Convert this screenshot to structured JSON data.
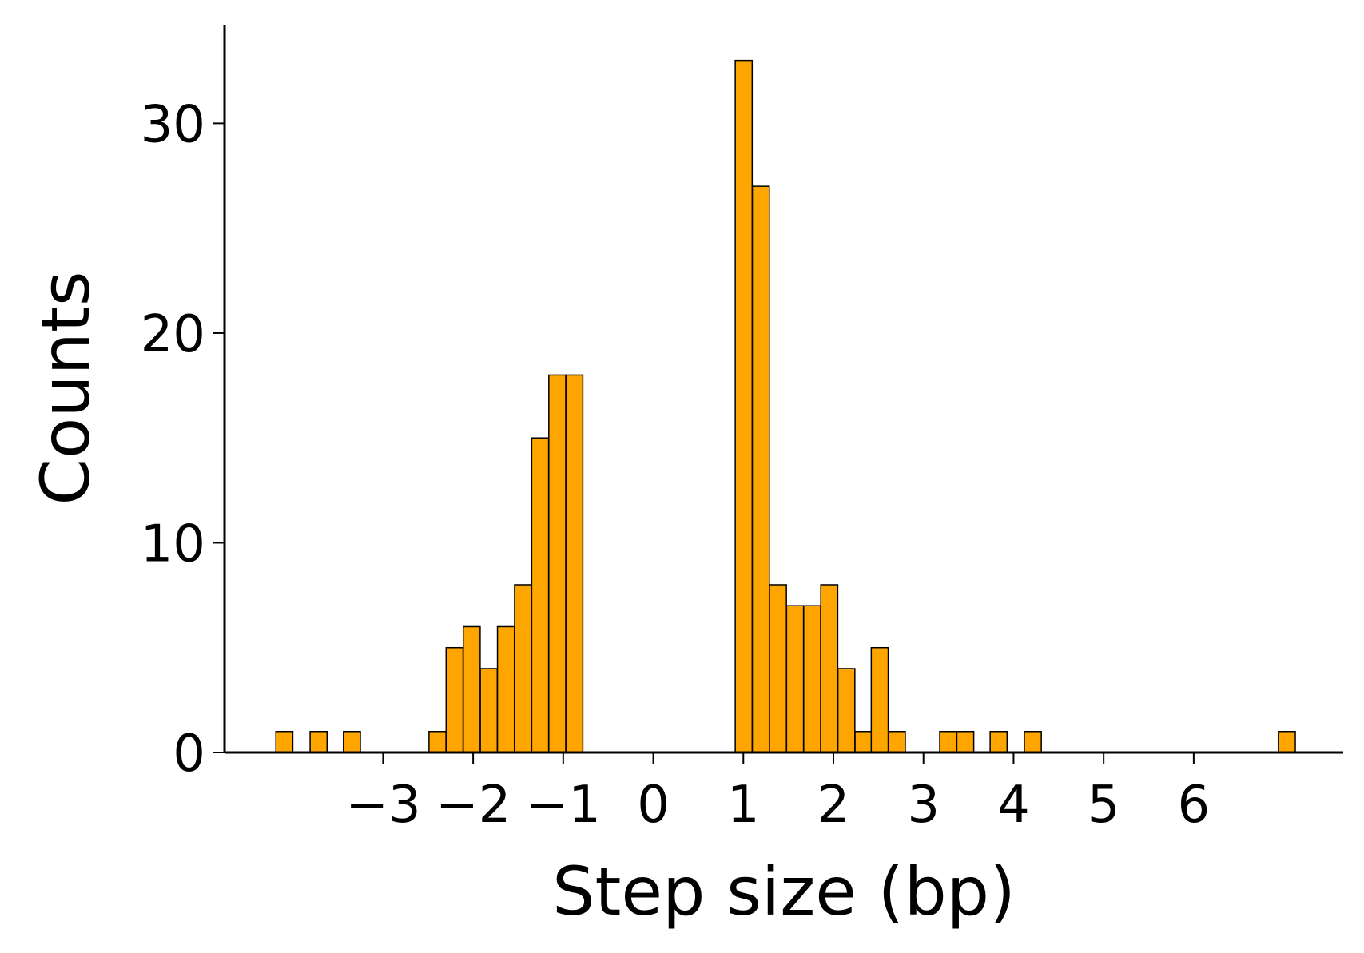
{
  "chart_data": {
    "type": "bar",
    "title": "",
    "xlabel": "Step size (bp)",
    "ylabel": "Counts",
    "xlim": [
      -4.76,
      7.66
    ],
    "ylim": [
      0,
      34.7
    ],
    "x_ticks": [
      -3,
      -2,
      -1,
      0,
      1,
      2,
      3,
      4,
      5,
      6
    ],
    "x_tick_labels": [
      "−3",
      "−2",
      "−1",
      "0",
      "1",
      "2",
      "3",
      "4",
      "5",
      "6"
    ],
    "y_ticks": [
      0,
      10,
      20,
      30
    ],
    "y_tick_labels": [
      "0",
      "10",
      "20",
      "30"
    ],
    "grid": false,
    "legend": "none",
    "bar_color": "#ffa500",
    "edge_color": "#000000",
    "bin_width": 0.188,
    "bin_left_edges": [
      -4.19,
      -3.81,
      -3.44,
      -2.49,
      -2.3,
      -2.11,
      -1.92,
      -1.73,
      -1.54,
      -1.35,
      -1.16,
      -0.97,
      0.91,
      1.1,
      1.29,
      1.48,
      1.67,
      1.86,
      2.05,
      2.24,
      2.42,
      2.61,
      3.18,
      3.37,
      3.74,
      4.12,
      6.94
    ],
    "values": [
      1,
      1,
      1,
      1,
      5,
      6,
      4,
      6,
      8,
      15,
      18,
      18,
      33,
      27,
      8,
      7,
      7,
      8,
      4,
      1,
      5,
      1,
      1,
      1,
      1,
      1,
      1
    ]
  }
}
